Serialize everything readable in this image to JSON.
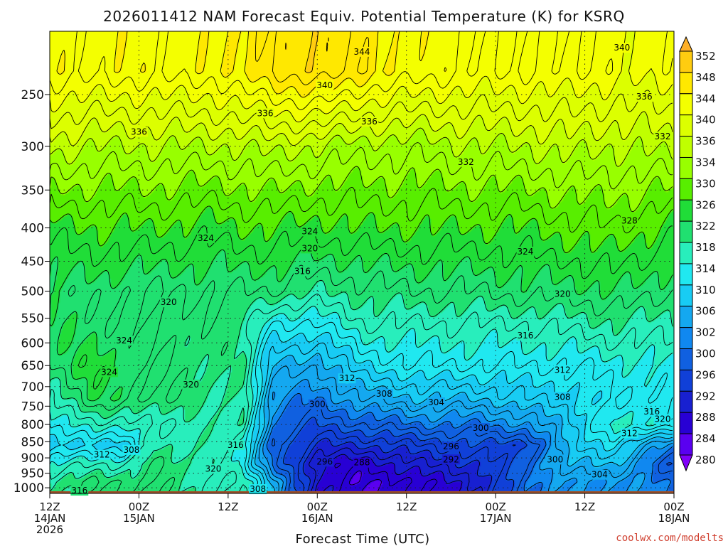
{
  "chart_data": {
    "type": "heatmap",
    "title": "2026011412 NAM Forecast Equiv. Potential Temperature (K) for KSRQ",
    "xlabel": "Forecast Time (UTC)",
    "ylabel": "",
    "x_ticks": [
      {
        "hour": 0,
        "lines": [
          "12Z",
          "14JAN",
          "2026"
        ]
      },
      {
        "hour": 12,
        "lines": [
          "00Z",
          "15JAN"
        ]
      },
      {
        "hour": 24,
        "lines": [
          "12Z"
        ]
      },
      {
        "hour": 36,
        "lines": [
          "00Z",
          "16JAN"
        ]
      },
      {
        "hour": 48,
        "lines": [
          "12Z"
        ]
      },
      {
        "hour": 60,
        "lines": [
          "00Z",
          "17JAN"
        ]
      },
      {
        "hour": 72,
        "lines": [
          "12Z"
        ]
      },
      {
        "hour": 84,
        "lines": [
          "00Z",
          "18JAN"
        ]
      }
    ],
    "xlim": [
      0,
      84
    ],
    "y_ticks": [
      "250",
      "300",
      "350",
      "400",
      "450",
      "500",
      "550",
      "600",
      "650",
      "700",
      "750",
      "800",
      "850",
      "900",
      "950",
      "1000"
    ],
    "y_tick_values": [
      250,
      300,
      350,
      400,
      450,
      500,
      550,
      600,
      650,
      700,
      750,
      800,
      850,
      900,
      950,
      1000
    ],
    "ylim": [
      1020,
      200
    ],
    "y_scale": "log-pressure",
    "grid": true,
    "colorbar": {
      "labels": [
        "352",
        "348",
        "344",
        "340",
        "336",
        "334",
        "330",
        "326",
        "322",
        "318",
        "314",
        "310",
        "306",
        "302",
        "300",
        "296",
        "292",
        "288",
        "284",
        "280"
      ],
      "colors": [
        "#ffb028",
        "#ffcc10",
        "#ffe800",
        "#f4ff00",
        "#dcff00",
        "#c0ff00",
        "#98ff00",
        "#58ee00",
        "#20dd38",
        "#20e070",
        "#28eebc",
        "#20e8f0",
        "#18ccf4",
        "#14a8f0",
        "#1088f0",
        "#1060e0",
        "#1040d8",
        "#1820d0",
        "#2800d4",
        "#5a00f0",
        "#8000f8"
      ]
    },
    "levels_y": [
      230,
      300,
      400,
      500,
      560,
      650,
      730,
      800,
      860,
      920,
      980
    ],
    "grid_columns": [
      {
        "hour": 0,
        "theta": [
          343,
          335,
          325,
          321,
          322,
          320,
          316,
          312,
          308,
          314,
          318
        ]
      },
      {
        "hour": 6,
        "theta": [
          343,
          334,
          326,
          321,
          321,
          324,
          322,
          316,
          310,
          316,
          320
        ]
      },
      {
        "hour": 10,
        "theta": [
          343,
          334,
          326,
          320,
          320,
          322,
          321,
          314,
          308,
          316,
          320
        ]
      },
      {
        "hour": 14,
        "theta": [
          343,
          334,
          326,
          320,
          320,
          320,
          320,
          316,
          318,
          320,
          320
        ]
      },
      {
        "hour": 22,
        "theta": [
          343,
          334,
          325,
          320,
          319,
          319,
          318,
          317,
          317,
          317,
          316
        ]
      },
      {
        "hour": 26,
        "theta": [
          345,
          334,
          326,
          320,
          318,
          318,
          318,
          318,
          314,
          312,
          316
        ]
      },
      {
        "hour": 30,
        "theta": [
          346,
          335,
          326,
          320,
          312,
          306,
          302,
          300,
          298,
          300,
          306
        ]
      },
      {
        "hour": 36,
        "theta": [
          348,
          334,
          325,
          318,
          312,
          304,
          300,
          296,
          292,
          288,
          288
        ]
      },
      {
        "hour": 42,
        "theta": [
          345,
          333,
          326,
          319,
          316,
          310,
          304,
          298,
          292,
          286,
          284
        ]
      },
      {
        "hour": 50,
        "theta": [
          343,
          333,
          326,
          320,
          316,
          312,
          306,
          300,
          294,
          290,
          286
        ]
      },
      {
        "hour": 58,
        "theta": [
          342,
          334,
          326,
          320,
          316,
          312,
          306,
          300,
          296,
          292,
          290
        ]
      },
      {
        "hour": 64,
        "theta": [
          342,
          334,
          326,
          321,
          316,
          312,
          308,
          302,
          294,
          298,
          300
        ]
      },
      {
        "hour": 70,
        "theta": [
          342,
          335,
          327,
          321,
          317,
          312,
          309,
          307,
          308,
          306,
          302
        ]
      },
      {
        "hour": 76,
        "theta": [
          341,
          334,
          328,
          322,
          318,
          313,
          312,
          316,
          310,
          306,
          302
        ]
      },
      {
        "hour": 84,
        "theta": [
          341,
          335,
          325,
          320,
          317,
          314,
          312,
          312,
          300,
          296,
          300
        ]
      }
    ],
    "contour_labels": [
      {
        "text": "344",
        "hour": 42,
        "p": 215
      },
      {
        "text": "340",
        "hour": 77,
        "p": 212
      },
      {
        "text": "340",
        "hour": 37,
        "p": 242
      },
      {
        "text": "336",
        "hour": 29,
        "p": 267
      },
      {
        "text": "336",
        "hour": 12,
        "p": 285
      },
      {
        "text": "336",
        "hour": 43,
        "p": 275
      },
      {
        "text": "336",
        "hour": 80,
        "p": 252
      },
      {
        "text": "332",
        "hour": 56,
        "p": 317
      },
      {
        "text": "332",
        "hour": 85,
        "p": 290
      },
      {
        "text": "328",
        "hour": 78,
        "p": 390
      },
      {
        "text": "324",
        "hour": 21,
        "p": 415
      },
      {
        "text": "324",
        "hour": 35,
        "p": 405
      },
      {
        "text": "324",
        "hour": 64,
        "p": 435
      },
      {
        "text": "320",
        "hour": 35,
        "p": 430
      },
      {
        "text": "320",
        "hour": 16,
        "p": 520
      },
      {
        "text": "320",
        "hour": 69,
        "p": 505
      },
      {
        "text": "316",
        "hour": 34,
        "p": 466
      },
      {
        "text": "316",
        "hour": 64,
        "p": 585
      },
      {
        "text": "316",
        "hour": 25,
        "p": 860
      },
      {
        "text": "316",
        "hour": 4,
        "p": 1010
      },
      {
        "text": "316",
        "hour": 81,
        "p": 765
      },
      {
        "text": "324",
        "hour": 10,
        "p": 595
      },
      {
        "text": "324",
        "hour": 8,
        "p": 665
      },
      {
        "text": "320",
        "hour": 19,
        "p": 695
      },
      {
        "text": "320",
        "hour": 22,
        "p": 935
      },
      {
        "text": "320",
        "hour": 83,
        "p": 785
      },
      {
        "text": "312",
        "hour": 40,
        "p": 680
      },
      {
        "text": "312",
        "hour": 69,
        "p": 660
      },
      {
        "text": "312",
        "hour": 78,
        "p": 825
      },
      {
        "text": "312",
        "hour": 7,
        "p": 890
      },
      {
        "text": "308",
        "hour": 45,
        "p": 718
      },
      {
        "text": "308",
        "hour": 69,
        "p": 726
      },
      {
        "text": "308",
        "hour": 11,
        "p": 875
      },
      {
        "text": "308",
        "hour": 28,
        "p": 1005
      },
      {
        "text": "304",
        "hour": 52,
        "p": 740
      },
      {
        "text": "304",
        "hour": 74,
        "p": 955
      },
      {
        "text": "300",
        "hour": 36,
        "p": 745
      },
      {
        "text": "300",
        "hour": 58,
        "p": 810
      },
      {
        "text": "300",
        "hour": 68,
        "p": 905
      },
      {
        "text": "296",
        "hour": 54,
        "p": 865
      },
      {
        "text": "296",
        "hour": 37,
        "p": 912
      },
      {
        "text": "292",
        "hour": 54,
        "p": 905
      },
      {
        "text": "288",
        "hour": 42,
        "p": 915
      }
    ],
    "ground_color": "#a05028"
  },
  "credit": "coolwx.com/modelts"
}
